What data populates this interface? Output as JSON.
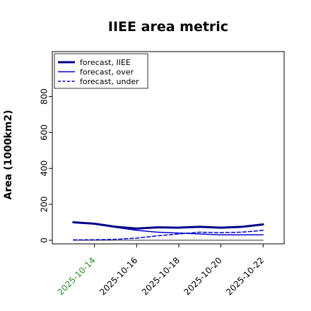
{
  "chart_data": {
    "type": "line",
    "title": "IIEE area metric",
    "xlabel": "",
    "ylabel": "Area (1000km2)",
    "xlim": [
      "2025-10-12",
      "2025-10-23"
    ],
    "ylim": [
      -20,
      1050
    ],
    "yticks": [
      0,
      200,
      400,
      600,
      800
    ],
    "xticks": [
      "2025-10-14",
      "2025-10-16",
      "2025-10-18",
      "2025-10-20",
      "2025-10-22"
    ],
    "xtick_colors": [
      "#2e8b2e",
      "#000000",
      "#000000",
      "#000000",
      "#000000"
    ],
    "grid": false,
    "legend_position": "upper-left",
    "x": [
      "2025-10-13",
      "2025-10-14",
      "2025-10-15",
      "2025-10-16",
      "2025-10-17",
      "2025-10-18",
      "2025-10-19",
      "2025-10-20",
      "2025-10-21",
      "2025-10-22"
    ],
    "series": [
      {
        "name": "forecast, IIEE",
        "style": "solid-thick",
        "color": "#00008b",
        "values": [
          100,
          92,
          75,
          65,
          72,
          70,
          75,
          70,
          75,
          88
        ]
      },
      {
        "name": "forecast, over",
        "style": "solid",
        "color": "#0000cd",
        "values": [
          100,
          92,
          72,
          55,
          45,
          40,
          35,
          30,
          30,
          30
        ]
      },
      {
        "name": "forecast, under",
        "style": "dashed",
        "color": "#0000cd",
        "values": [
          2,
          3,
          5,
          12,
          25,
          35,
          45,
          42,
          45,
          55
        ]
      },
      {
        "name": "",
        "style": "solid-thin",
        "color": "#555555",
        "values": [
          0,
          0,
          0,
          0,
          0,
          0,
          0,
          0,
          0,
          0
        ]
      }
    ]
  }
}
